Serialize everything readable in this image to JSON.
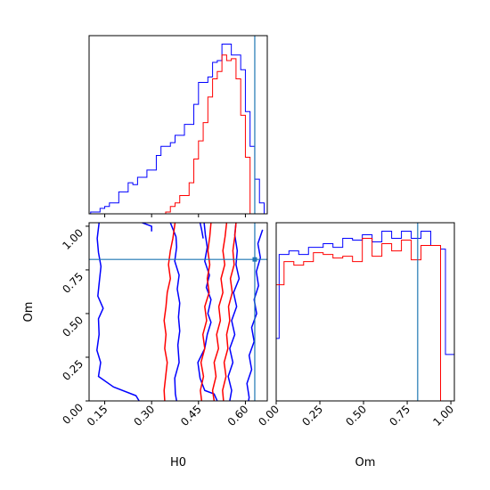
{
  "chart_data": [
    {
      "type": "histogram",
      "panel": "H0 marginal",
      "xlim": [
        0.1,
        0.67
      ],
      "bins": [
        0.09,
        0.105,
        0.12,
        0.135,
        0.15,
        0.165,
        0.18,
        0.195,
        0.21,
        0.225,
        0.24,
        0.255,
        0.27,
        0.285,
        0.3,
        0.315,
        0.33,
        0.345,
        0.36,
        0.375,
        0.39,
        0.405,
        0.42,
        0.435,
        0.45,
        0.465,
        0.48,
        0.495,
        0.51,
        0.525,
        0.54,
        0.555,
        0.57,
        0.585,
        0.6,
        0.615,
        0.63,
        0.645,
        0.66,
        0.675
      ],
      "series": [
        {
          "color": "#0000ff",
          "values": [
            0,
            1,
            1,
            3,
            4,
            6,
            6,
            12,
            12,
            17,
            16,
            20,
            20,
            24,
            24,
            32,
            37,
            37,
            39,
            43,
            43,
            49,
            49,
            60,
            72,
            72,
            75,
            83,
            84,
            93,
            93,
            87,
            87,
            79,
            56,
            37,
            19,
            6,
            0
          ]
        },
        {
          "color": "#ff0000",
          "values": [
            0,
            0,
            0,
            0,
            0,
            0,
            0,
            0,
            0,
            0,
            0,
            0,
            0,
            0,
            0,
            0,
            0,
            1,
            4,
            6,
            10,
            10,
            17,
            30,
            40,
            50,
            64,
            74,
            78,
            87,
            84,
            85,
            74,
            54,
            31,
            0,
            0,
            0,
            0
          ]
        }
      ],
      "truth": {
        "x": 0.63
      }
    },
    {
      "type": "contour",
      "panel": "H0 vs Om",
      "xlabel": "H0",
      "ylabel": "Om",
      "xlim": [
        0.1,
        0.67
      ],
      "ylim": [
        0.0,
        1.02
      ],
      "xticks": [
        "0.15",
        "0.30",
        "0.45",
        "0.60"
      ],
      "yticks": [
        "0.00",
        "0.25",
        "0.50",
        "0.75",
        "1.00"
      ],
      "contours": [
        {
          "color": "#0000ff",
          "points": [
            [
              0.132,
              1.02
            ],
            [
              0.126,
              0.93
            ],
            [
              0.13,
              0.85
            ],
            [
              0.138,
              0.77
            ],
            [
              0.132,
              0.67
            ],
            [
              0.128,
              0.6
            ],
            [
              0.145,
              0.53
            ],
            [
              0.13,
              0.47
            ],
            [
              0.132,
              0.38
            ],
            [
              0.125,
              0.29
            ],
            [
              0.137,
              0.22
            ],
            [
              0.13,
              0.14
            ],
            [
              0.178,
              0.08
            ],
            [
              0.25,
              0.03
            ],
            [
              0.26,
              0.0
            ]
          ]
        },
        {
          "color": "#0000ff",
          "points": [
            [
              0.27,
              1.02
            ],
            [
              0.3,
              1.0
            ],
            [
              0.3,
              0.97
            ]
          ]
        },
        {
          "color": "#0000ff",
          "points": [
            [
              0.36,
              1.02
            ],
            [
              0.378,
              0.94
            ],
            [
              0.38,
              0.88
            ],
            [
              0.374,
              0.8
            ],
            [
              0.388,
              0.72
            ],
            [
              0.382,
              0.64
            ],
            [
              0.39,
              0.56
            ],
            [
              0.386,
              0.48
            ],
            [
              0.39,
              0.4
            ],
            [
              0.384,
              0.32
            ],
            [
              0.388,
              0.22
            ],
            [
              0.374,
              0.13
            ],
            [
              0.376,
              0.04
            ],
            [
              0.38,
              0.0
            ]
          ]
        },
        {
          "color": "#0000ff",
          "points": [
            [
              0.455,
              1.02
            ],
            [
              0.46,
              0.98
            ],
            [
              0.465,
              0.93
            ]
          ]
        },
        {
          "color": "#0000ff",
          "points": [
            [
              0.468,
              1.02
            ],
            [
              0.472,
              0.95
            ],
            [
              0.478,
              0.88
            ],
            [
              0.47,
              0.8
            ],
            [
              0.485,
              0.72
            ],
            [
              0.475,
              0.65
            ],
            [
              0.49,
              0.58
            ],
            [
              0.48,
              0.5
            ],
            [
              0.49,
              0.45
            ],
            [
              0.478,
              0.38
            ],
            [
              0.47,
              0.3
            ],
            [
              0.448,
              0.22
            ],
            [
              0.455,
              0.13
            ],
            [
              0.47,
              0.06
            ],
            [
              0.5,
              0.04
            ],
            [
              0.51,
              0.0
            ]
          ]
        },
        {
          "color": "#0000ff",
          "points": [
            [
              0.57,
              1.02
            ],
            [
              0.566,
              0.95
            ],
            [
              0.574,
              0.86
            ],
            [
              0.57,
              0.78
            ],
            [
              0.58,
              0.7
            ],
            [
              0.562,
              0.62
            ],
            [
              0.572,
              0.54
            ],
            [
              0.556,
              0.46
            ],
            [
              0.566,
              0.38
            ],
            [
              0.55,
              0.3
            ],
            [
              0.56,
              0.22
            ],
            [
              0.545,
              0.14
            ],
            [
              0.556,
              0.06
            ],
            [
              0.55,
              0.0
            ]
          ]
        },
        {
          "color": "#0000ff",
          "points": [
            [
              0.655,
              0.98
            ],
            [
              0.64,
              0.9
            ],
            [
              0.648,
              0.82
            ],
            [
              0.635,
              0.74
            ],
            [
              0.642,
              0.66
            ],
            [
              0.628,
              0.58
            ],
            [
              0.636,
              0.5
            ],
            [
              0.62,
              0.42
            ],
            [
              0.628,
              0.34
            ],
            [
              0.612,
              0.26
            ],
            [
              0.62,
              0.18
            ],
            [
              0.605,
              0.1
            ],
            [
              0.612,
              0.02
            ],
            [
              0.61,
              0.0
            ]
          ]
        },
        {
          "color": "#ff0000",
          "points": [
            [
              0.375,
              1.02
            ],
            [
              0.368,
              0.93
            ],
            [
              0.36,
              0.86
            ],
            [
              0.354,
              0.78
            ],
            [
              0.36,
              0.7
            ],
            [
              0.35,
              0.62
            ],
            [
              0.346,
              0.54
            ],
            [
              0.34,
              0.46
            ],
            [
              0.346,
              0.38
            ],
            [
              0.342,
              0.3
            ],
            [
              0.35,
              0.22
            ],
            [
              0.345,
              0.14
            ],
            [
              0.34,
              0.06
            ],
            [
              0.342,
              0.0
            ]
          ]
        },
        {
          "color": "#ff0000",
          "points": [
            [
              0.49,
              1.02
            ],
            [
              0.486,
              0.94
            ],
            [
              0.48,
              0.86
            ],
            [
              0.486,
              0.78
            ],
            [
              0.478,
              0.7
            ],
            [
              0.484,
              0.62
            ],
            [
              0.47,
              0.54
            ],
            [
              0.476,
              0.46
            ],
            [
              0.464,
              0.38
            ],
            [
              0.47,
              0.3
            ],
            [
              0.458,
              0.22
            ],
            [
              0.466,
              0.14
            ],
            [
              0.456,
              0.06
            ],
            [
              0.46,
              0.0
            ]
          ]
        },
        {
          "color": "#ff0000",
          "points": [
            [
              0.54,
              1.02
            ],
            [
              0.535,
              0.94
            ],
            [
              0.528,
              0.86
            ],
            [
              0.534,
              0.78
            ],
            [
              0.522,
              0.7
            ],
            [
              0.528,
              0.62
            ],
            [
              0.515,
              0.54
            ],
            [
              0.52,
              0.46
            ],
            [
              0.508,
              0.38
            ],
            [
              0.514,
              0.3
            ],
            [
              0.5,
              0.22
            ],
            [
              0.506,
              0.14
            ],
            [
              0.495,
              0.06
            ],
            [
              0.5,
              0.0
            ]
          ]
        },
        {
          "color": "#ff0000",
          "points": [
            [
              0.57,
              1.02
            ],
            [
              0.566,
              0.94
            ],
            [
              0.56,
              0.86
            ],
            [
              0.564,
              0.78
            ],
            [
              0.552,
              0.7
            ],
            [
              0.558,
              0.62
            ],
            [
              0.546,
              0.54
            ],
            [
              0.55,
              0.46
            ],
            [
              0.54,
              0.38
            ],
            [
              0.544,
              0.3
            ],
            [
              0.532,
              0.22
            ],
            [
              0.538,
              0.14
            ],
            [
              0.527,
              0.06
            ],
            [
              0.53,
              0.0
            ]
          ]
        }
      ],
      "truth": {
        "x": 0.63,
        "y": 0.81
      },
      "truth_marker_color": "#1f77b4"
    },
    {
      "type": "histogram",
      "panel": "Om marginal",
      "xlabel": "Om",
      "xlim": [
        0.0,
        1.02
      ],
      "xticks": [
        "0.00",
        "0.25",
        "0.50",
        "0.75",
        "1.00"
      ],
      "bins": [
        -0.011,
        0.017,
        0.045,
        0.073,
        0.101,
        0.129,
        0.157,
        0.185,
        0.213,
        0.241,
        0.269,
        0.297,
        0.325,
        0.353,
        0.381,
        0.409,
        0.437,
        0.465,
        0.493,
        0.521,
        0.549,
        0.577,
        0.605,
        0.633,
        0.661,
        0.689,
        0.717,
        0.745,
        0.773,
        0.801,
        0.829,
        0.857,
        0.885,
        0.913,
        0.941,
        0.969,
        0.997,
        1.025
      ],
      "series": [
        {
          "color": "#0000ff",
          "values": [
            35,
            82,
            82,
            84,
            84,
            82,
            82,
            86,
            86,
            86,
            88,
            88,
            86,
            86,
            91,
            91,
            90,
            90,
            93,
            93,
            89,
            89,
            95,
            95,
            91,
            91,
            95,
            95,
            91,
            91,
            95,
            95,
            87,
            87,
            85,
            26,
            26
          ]
        },
        {
          "color": "#ff0000",
          "values": [
            65,
            65,
            78,
            78,
            76,
            76,
            78,
            78,
            83,
            83,
            82,
            82,
            80,
            80,
            81,
            81,
            78,
            78,
            91,
            91,
            81,
            81,
            88,
            88,
            84,
            84,
            90,
            90,
            79,
            79,
            87,
            87,
            87,
            87,
            0,
            0,
            0
          ]
        }
      ],
      "truth": {
        "x": 0.81
      }
    }
  ]
}
